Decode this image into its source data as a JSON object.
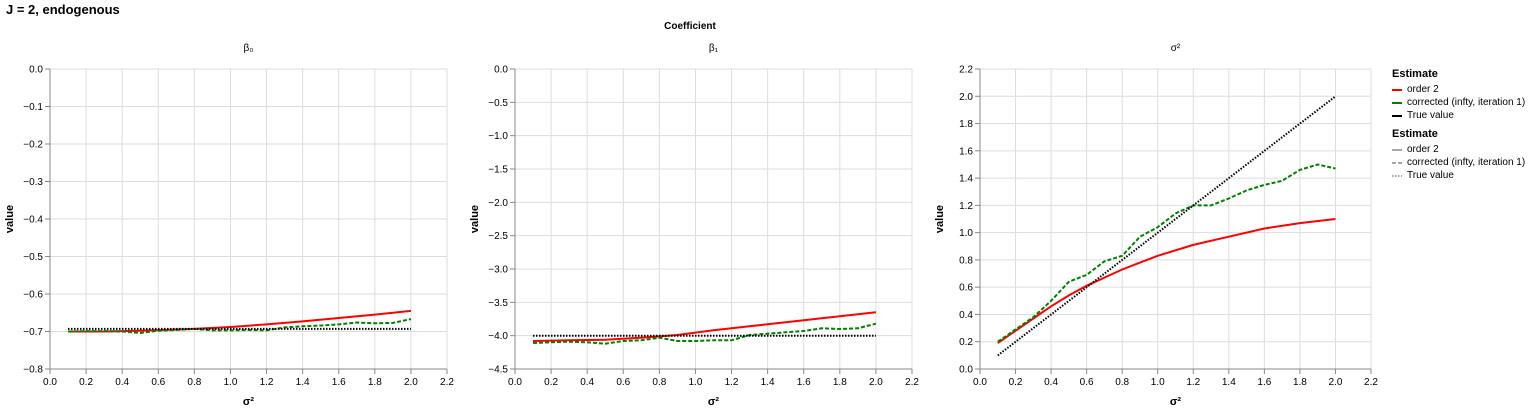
{
  "title": "J = 2, endogenous",
  "facet_header": "Coefficient",
  "legend": {
    "color_title": "Estimate",
    "style_title": "Estimate",
    "entries": [
      {
        "label": "order 2",
        "color": "#ff0000",
        "dash": ""
      },
      {
        "label": "corrected (infty, iteration 1)",
        "color": "#008000",
        "dash": "4,2"
      },
      {
        "label": "True value",
        "color": "#000000",
        "dash": "1.5,1.5"
      }
    ],
    "style_color": "#888888"
  },
  "chart_data": [
    {
      "type": "line",
      "title": "β₀",
      "xlabel": "σ²",
      "ylabel": "value",
      "xlim": [
        0,
        2.2
      ],
      "ylim": [
        -0.8,
        0.0
      ],
      "xticks": [
        0.0,
        0.2,
        0.4,
        0.6,
        0.8,
        1.0,
        1.2,
        1.4,
        1.6,
        1.8,
        2.0,
        2.2
      ],
      "yticks": [
        -0.8,
        -0.7,
        -0.6,
        -0.5,
        -0.4,
        -0.3,
        -0.2,
        -0.1,
        0.0
      ],
      "tick_decimals": 1,
      "grid": true,
      "series": [
        {
          "name": "order 2",
          "color": "#ff0000",
          "dash": "",
          "x": [
            0.1,
            0.3,
            0.5,
            0.8,
            1.0,
            1.2,
            1.4,
            1.6,
            1.8,
            2.0
          ],
          "y": [
            -0.7,
            -0.7,
            -0.698,
            -0.693,
            -0.688,
            -0.681,
            -0.673,
            -0.664,
            -0.655,
            -0.645
          ]
        },
        {
          "name": "corrected (infty, iteration 1)",
          "color": "#008000",
          "dash": "4,2",
          "x": [
            0.1,
            0.2,
            0.3,
            0.4,
            0.5,
            0.6,
            0.7,
            0.8,
            0.9,
            1.0,
            1.1,
            1.2,
            1.3,
            1.4,
            1.5,
            1.6,
            1.7,
            1.8,
            1.9,
            2.0
          ],
          "y": [
            -0.7,
            -0.699,
            -0.699,
            -0.7,
            -0.704,
            -0.698,
            -0.696,
            -0.693,
            -0.697,
            -0.697,
            -0.696,
            -0.697,
            -0.689,
            -0.686,
            -0.684,
            -0.681,
            -0.676,
            -0.678,
            -0.677,
            -0.667
          ]
        },
        {
          "name": "True value",
          "color": "#000000",
          "dash": "1.5,1.5",
          "x": [
            0.1,
            2.0
          ],
          "y": [
            -0.693,
            -0.693
          ]
        }
      ]
    },
    {
      "type": "line",
      "title": "β₁",
      "xlabel": "σ²",
      "ylabel": "value",
      "xlim": [
        0,
        2.2
      ],
      "ylim": [
        -4.5,
        0.0
      ],
      "xticks": [
        0.0,
        0.2,
        0.4,
        0.6,
        0.8,
        1.0,
        1.2,
        1.4,
        1.6,
        1.8,
        2.0,
        2.2
      ],
      "yticks": [
        -4.5,
        -4.0,
        -3.5,
        -3.0,
        -2.5,
        -2.0,
        -1.5,
        -1.0,
        -0.5,
        0.0
      ],
      "tick_decimals": 1,
      "grid": true,
      "series": [
        {
          "name": "order 2",
          "color": "#ff0000",
          "dash": "",
          "x": [
            0.1,
            0.3,
            0.5,
            0.7,
            0.9,
            1.1,
            1.3,
            1.5,
            1.7,
            2.0
          ],
          "y": [
            -4.08,
            -4.07,
            -4.06,
            -4.03,
            -3.99,
            -3.92,
            -3.86,
            -3.8,
            -3.74,
            -3.65
          ]
        },
        {
          "name": "corrected (infty, iteration 1)",
          "color": "#008000",
          "dash": "4,2",
          "x": [
            0.1,
            0.2,
            0.3,
            0.4,
            0.5,
            0.6,
            0.7,
            0.8,
            0.9,
            1.0,
            1.1,
            1.2,
            1.3,
            1.4,
            1.5,
            1.6,
            1.7,
            1.8,
            1.9,
            2.0
          ],
          "y": [
            -4.11,
            -4.1,
            -4.09,
            -4.1,
            -4.12,
            -4.08,
            -4.07,
            -4.03,
            -4.08,
            -4.08,
            -4.07,
            -4.07,
            -3.99,
            -3.97,
            -3.95,
            -3.93,
            -3.89,
            -3.9,
            -3.89,
            -3.82
          ]
        },
        {
          "name": "True value",
          "color": "#000000",
          "dash": "1.5,1.5",
          "x": [
            0.1,
            2.0
          ],
          "y": [
            -4.0,
            -4.0
          ]
        }
      ]
    },
    {
      "type": "line",
      "title": "σ²",
      "xlabel": "σ²",
      "ylabel": "value",
      "xlim": [
        0,
        2.2
      ],
      "ylim": [
        0,
        2.2
      ],
      "xticks": [
        0.0,
        0.2,
        0.4,
        0.6,
        0.8,
        1.0,
        1.2,
        1.4,
        1.6,
        1.8,
        2.0,
        2.2
      ],
      "yticks": [
        0.0,
        0.2,
        0.4,
        0.6,
        0.8,
        1.0,
        1.2,
        1.4,
        1.6,
        1.8,
        2.0,
        2.2
      ],
      "tick_decimals": 1,
      "grid": true,
      "series": [
        {
          "name": "order 2",
          "color": "#ff0000",
          "dash": "",
          "x": [
            0.1,
            0.2,
            0.3,
            0.4,
            0.5,
            0.6,
            0.7,
            0.8,
            0.9,
            1.0,
            1.2,
            1.4,
            1.6,
            1.8,
            2.0
          ],
          "y": [
            0.19,
            0.28,
            0.37,
            0.46,
            0.54,
            0.61,
            0.67,
            0.73,
            0.78,
            0.83,
            0.91,
            0.97,
            1.03,
            1.07,
            1.1
          ]
        },
        {
          "name": "corrected (infty, iteration 1)",
          "color": "#008000",
          "dash": "4,2",
          "x": [
            0.1,
            0.2,
            0.3,
            0.4,
            0.5,
            0.6,
            0.7,
            0.8,
            0.9,
            1.0,
            1.1,
            1.2,
            1.3,
            1.4,
            1.5,
            1.6,
            1.7,
            1.8,
            1.9,
            2.0
          ],
          "y": [
            0.2,
            0.29,
            0.38,
            0.5,
            0.64,
            0.69,
            0.79,
            0.83,
            0.97,
            1.04,
            1.14,
            1.2,
            1.2,
            1.25,
            1.31,
            1.35,
            1.38,
            1.46,
            1.5,
            1.47
          ]
        },
        {
          "name": "True value",
          "color": "#000000",
          "dash": "1.5,1.5",
          "x": [
            0.1,
            2.0
          ],
          "y": [
            0.1,
            2.0
          ]
        }
      ]
    }
  ]
}
